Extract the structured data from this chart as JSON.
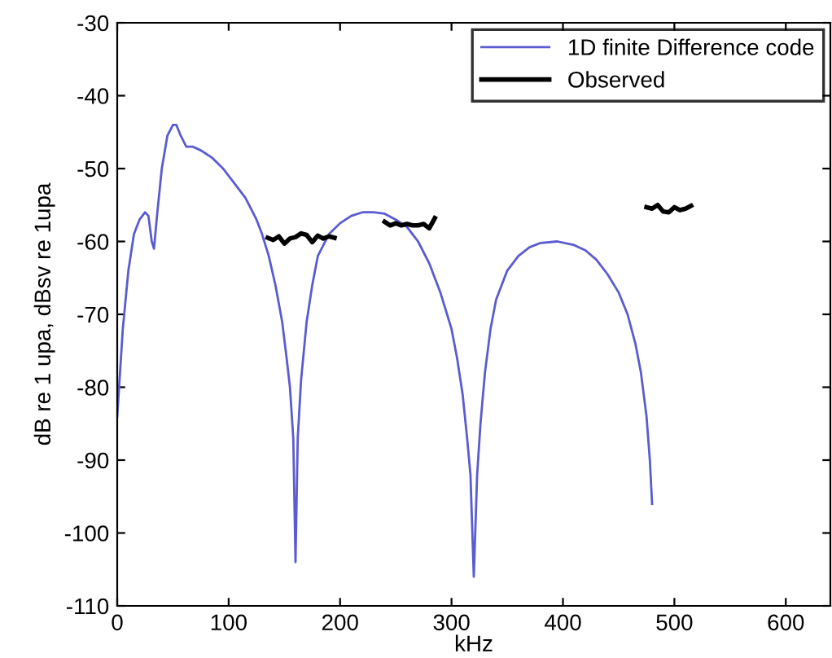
{
  "chart_data": {
    "type": "line",
    "xlabel": "kHz",
    "ylabel": "dB re 1 upa, dBsv re 1upa",
    "xlim": [
      0,
      640
    ],
    "ylim": [
      -110,
      -30
    ],
    "xticks": [
      0,
      100,
      200,
      300,
      400,
      500,
      600
    ],
    "yticks": [
      -110,
      -100,
      -90,
      -80,
      -70,
      -60,
      -50,
      -40,
      -30
    ],
    "grid": false,
    "legend": "top right",
    "marker": "none",
    "line_style": "solid",
    "series": [
      {
        "name": "1D finite Difference code",
        "color": "#5a5ad2",
        "x": [
          0,
          5,
          10,
          15,
          20,
          25,
          28,
          31,
          33,
          36,
          40,
          45,
          50,
          53,
          57,
          62,
          68,
          75,
          85,
          95,
          105,
          115,
          125,
          130,
          136,
          142,
          148,
          152,
          155,
          158,
          160,
          162,
          165,
          170,
          175,
          180,
          190,
          200,
          210,
          220,
          230,
          240,
          250,
          260,
          270,
          280,
          290,
          300,
          305,
          310,
          314,
          317,
          320,
          323,
          326,
          330,
          335,
          340,
          350,
          360,
          370,
          380,
          395,
          410,
          420,
          430,
          440,
          450,
          458,
          465,
          470,
          475,
          478,
          480
        ],
        "values": [
          -84,
          -72,
          -64,
          -59,
          -57,
          -56,
          -56.5,
          -60,
          -61,
          -56,
          -50,
          -45.5,
          -44,
          -44,
          -45.5,
          -47,
          -47,
          -47.5,
          -48.5,
          -50,
          -52,
          -54,
          -57,
          -59,
          -62,
          -66,
          -71,
          -76,
          -80,
          -87,
          -104,
          -87,
          -79,
          -71,
          -66,
          -62,
          -59,
          -57.5,
          -56.5,
          -56,
          -56,
          -56.2,
          -57,
          -58,
          -60,
          -63,
          -67,
          -72,
          -76,
          -81,
          -87,
          -92,
          -106,
          -92,
          -85,
          -78,
          -72,
          -68,
          -64,
          -62,
          -60.8,
          -60.2,
          -60,
          -60.5,
          -61.2,
          -62.5,
          -64.5,
          -67,
          -70,
          -74,
          -78,
          -84,
          -90,
          -96
        ]
      },
      {
        "name": "Observed",
        "color": "#000000",
        "x": [
          135,
          140,
          145,
          150,
          155,
          160,
          165,
          170,
          175,
          180,
          185,
          190,
          195,
          215,
          240,
          245,
          250,
          255,
          260,
          265,
          270,
          275,
          280,
          285,
          400,
          475,
          480,
          485,
          490,
          495,
          500,
          505,
          510,
          515
        ],
        "values": [
          -59.5,
          -59.8,
          -59.3,
          -60.3,
          -59.6,
          -59.4,
          -58.9,
          -59.1,
          -60.1,
          -59.2,
          -59.6,
          -59.3,
          -59.5,
          null,
          -57.3,
          -57.8,
          -57.5,
          -57.8,
          -57.6,
          -57.8,
          -57.8,
          -57.6,
          -58.2,
          -56.8,
          null,
          -55.3,
          -55.5,
          -55.0,
          -55.9,
          -56.0,
          -55.3,
          -55.7,
          -55.5,
          -55.1
        ]
      }
    ]
  }
}
